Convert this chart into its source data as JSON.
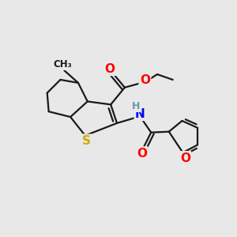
{
  "background_color": "#e8e8e8",
  "bond_color": "#1a1a1a",
  "atom_colors": {
    "O": "#ff0000",
    "S": "#d4aa00",
    "N": "#0000ff",
    "H": "#6699aa",
    "C": "#1a1a1a"
  },
  "figsize": [
    3.0,
    3.0
  ],
  "dpi": 100
}
